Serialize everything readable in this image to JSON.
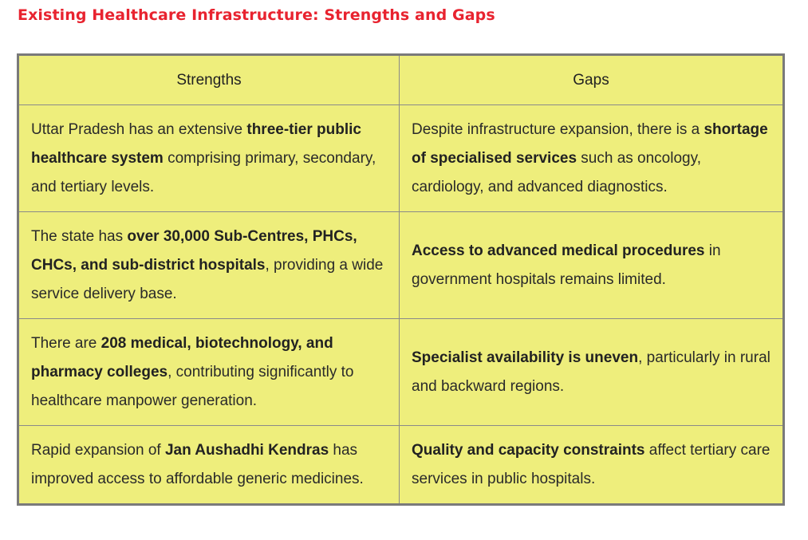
{
  "title": "Existing Healthcare Infrastructure: Strengths and Gaps",
  "table": {
    "headers": [
      "Strengths",
      "Gaps"
    ],
    "rows": [
      {
        "strength": {
          "pre": "Uttar Pradesh has an extensive ",
          "bold": "three-tier public healthcare system",
          "post": " comprising primary, secondary, and tertiary levels."
        },
        "gap": {
          "pre": "Despite infrastructure expansion, there is a ",
          "bold": "shortage of specialised services",
          "post": " such as oncology, cardiology, and advanced diagnostics."
        }
      },
      {
        "strength": {
          "pre": "The state has ",
          "bold": "over 30,000 Sub-Centres, PHCs, CHCs, and sub-district hospitals",
          "post": ", providing a wide service delivery base."
        },
        "gap": {
          "pre": "",
          "bold": "Access to advanced medical procedures",
          "post": " in government hospitals remains limited."
        }
      },
      {
        "strength": {
          "pre": "There are ",
          "bold": "208 medical, biotechnology, and pharmacy colleges",
          "post": ", contributing significantly to healthcare manpower generation."
        },
        "gap": {
          "pre": "",
          "bold": "Specialist availability is uneven",
          "post": ", particularly in rural and backward regions."
        }
      },
      {
        "strength": {
          "pre": "Rapid expansion of ",
          "bold": "Jan Aushadhi Kendras",
          "post": " has improved access to affordable generic medicines."
        },
        "gap": {
          "pre": "",
          "bold": "Quality and capacity constraints",
          "post": " affect tertiary care services in public hospitals."
        }
      }
    ]
  }
}
